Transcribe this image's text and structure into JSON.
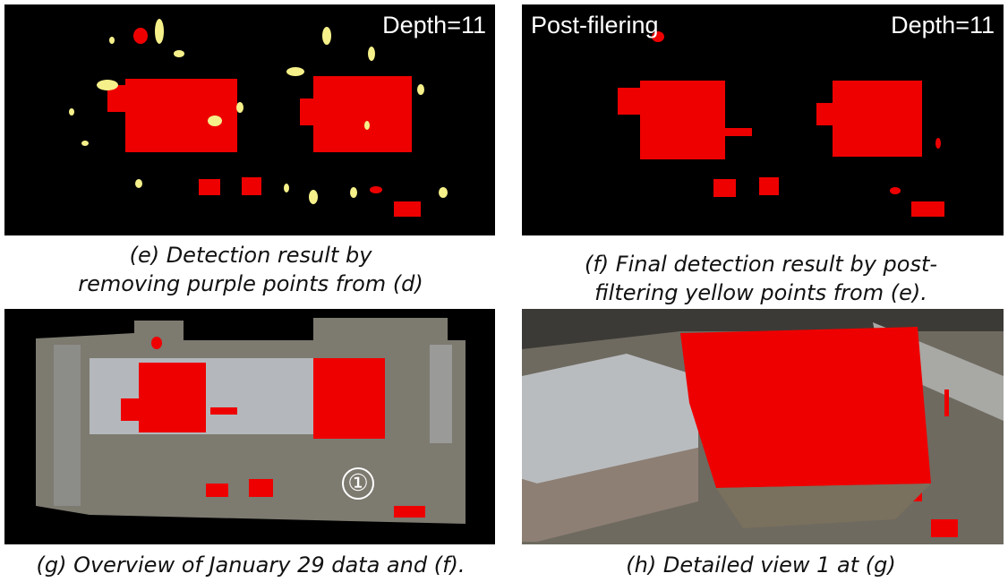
{
  "panels": [
    {
      "overlay_right": "Depth=11",
      "caption": [
        "(e) Detection result by",
        "removing purple points from (d)"
      ]
    },
    {
      "overlay_left": "Post-filering",
      "overlay_right": "Depth=11",
      "caption": [
        "(f) Final detection result by post-",
        "filtering yellow points from (e)."
      ]
    },
    {
      "marker": "①",
      "caption": [
        "(g) Overview of January 29 data and (f)."
      ]
    },
    {
      "caption": [
        "(h) Detailed view 1 at (g)"
      ]
    }
  ]
}
